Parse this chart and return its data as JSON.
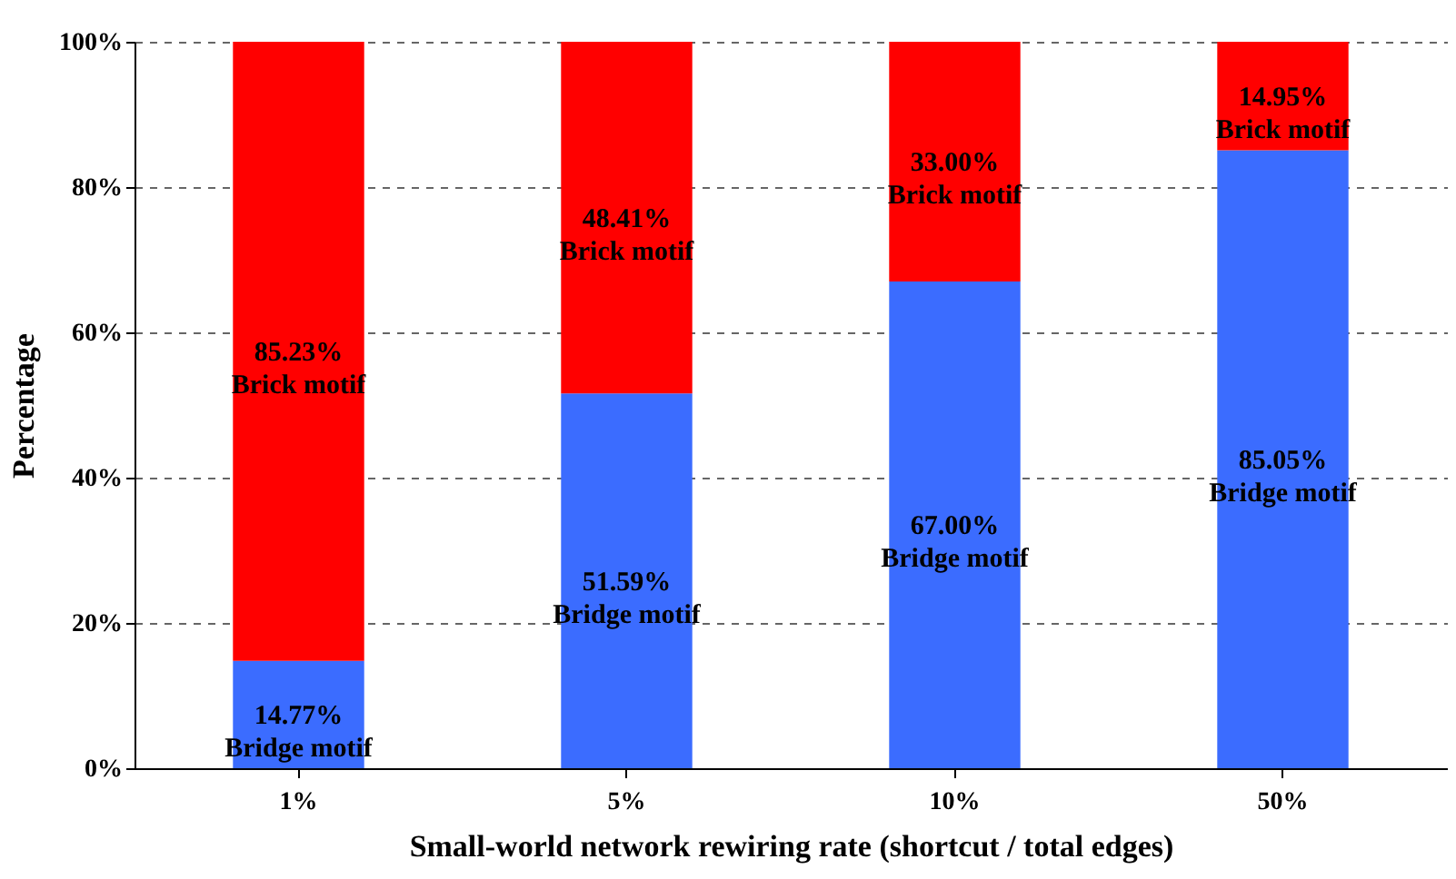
{
  "chart_data": {
    "type": "bar",
    "stacked": true,
    "xlabel": "Small-world network rewiring rate (shortcut / total edges)",
    "ylabel": "Percentage",
    "categories": [
      "1%",
      "5%",
      "10%",
      "50%"
    ],
    "series": [
      {
        "name": "Bridge motif",
        "color": "#3b6cff",
        "values": [
          14.77,
          51.59,
          67.0,
          85.05
        ],
        "value_labels": [
          "14.77%",
          "51.59%",
          "67.00%",
          "85.05%"
        ]
      },
      {
        "name": "Brick motif",
        "color": "#ff0000",
        "values": [
          85.23,
          48.41,
          33.0,
          14.95
        ],
        "value_labels": [
          "85.23%",
          "48.41%",
          "33.00%",
          "14.95%"
        ]
      }
    ],
    "ylim": [
      0,
      100
    ],
    "yticks": [
      {
        "value": 0,
        "label": "0%"
      },
      {
        "value": 20,
        "label": "20%"
      },
      {
        "value": 40,
        "label": "40%"
      },
      {
        "value": 60,
        "label": "60%"
      },
      {
        "value": 80,
        "label": "80%"
      },
      {
        "value": 100,
        "label": "100%"
      }
    ],
    "grid": "y",
    "line_style": "dashed",
    "legend": false
  }
}
